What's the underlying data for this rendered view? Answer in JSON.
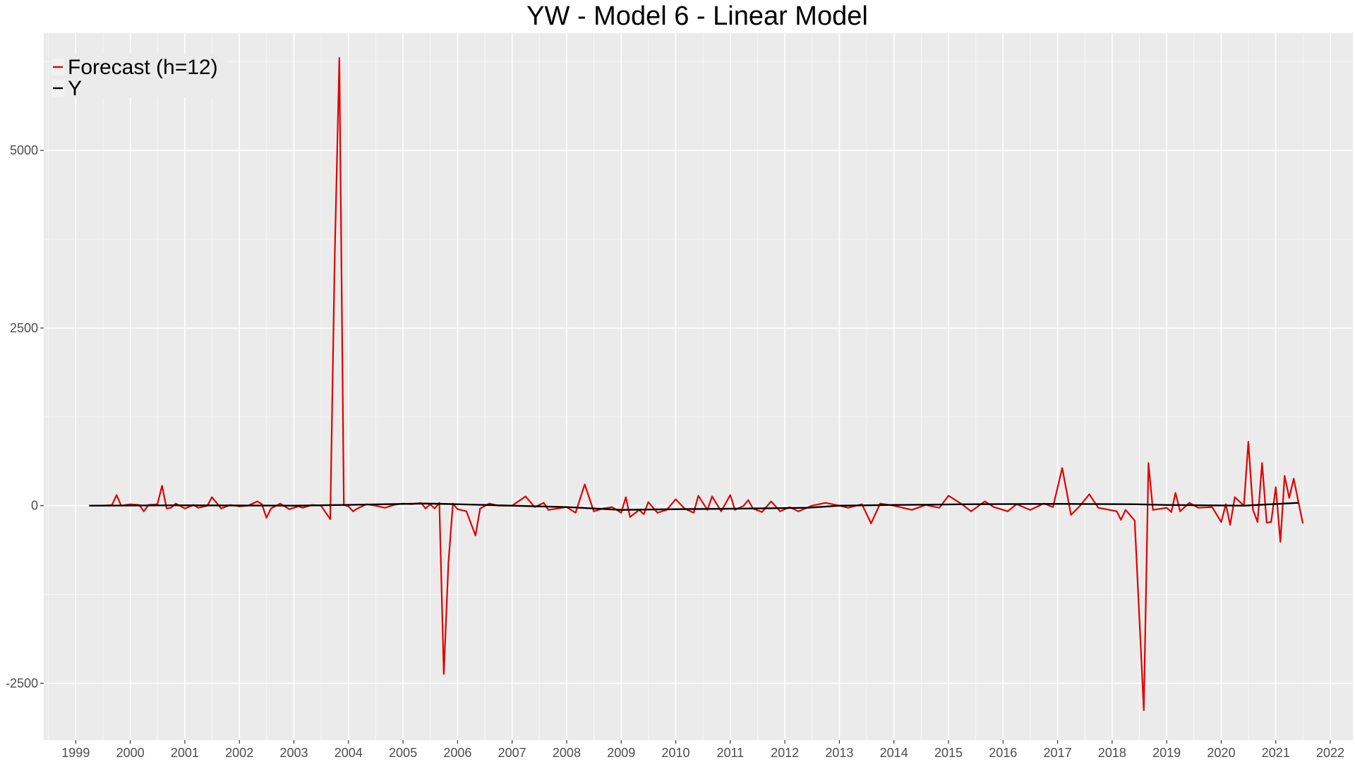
{
  "chart_data": {
    "type": "line",
    "title": "YW - Model 6 - Linear Model",
    "xlabel": "",
    "ylabel": "",
    "x_range": [
      "1998-06-01",
      "2022-06-01"
    ],
    "ylim": [
      -3300,
      6650
    ],
    "x_ticks": [
      "1999",
      "2000",
      "2001",
      "2002",
      "2003",
      "2004",
      "2005",
      "2006",
      "2007",
      "2008",
      "2009",
      "2010",
      "2011",
      "2012",
      "2013",
      "2014",
      "2015",
      "2016",
      "2017",
      "2018",
      "2019",
      "2020",
      "2021",
      "2022"
    ],
    "y_ticks": [
      -2500,
      0,
      2500,
      5000
    ],
    "grid": true,
    "legend": "top-left",
    "series": [
      {
        "name": "Forecast (h=12)",
        "color": "#e00000",
        "points": [
          [
            "1999-07-01",
            0
          ],
          [
            "1999-09-01",
            10
          ],
          [
            "1999-10-01",
            150
          ],
          [
            "1999-11-01",
            0
          ],
          [
            "2000-01-01",
            20
          ],
          [
            "2000-03-01",
            10
          ],
          [
            "2000-04-01",
            -80
          ],
          [
            "2000-05-01",
            10
          ],
          [
            "2000-07-01",
            20
          ],
          [
            "2000-08-01",
            280
          ],
          [
            "2000-09-01",
            -40
          ],
          [
            "2000-10-01",
            -30
          ],
          [
            "2000-11-01",
            30
          ],
          [
            "2001-01-01",
            -40
          ],
          [
            "2001-03-01",
            10
          ],
          [
            "2001-04-01",
            -30
          ],
          [
            "2001-06-01",
            0
          ],
          [
            "2001-07-01",
            120
          ],
          [
            "2001-09-01",
            -40
          ],
          [
            "2001-11-01",
            10
          ],
          [
            "2002-01-01",
            -10
          ],
          [
            "2002-03-01",
            0
          ],
          [
            "2002-05-01",
            60
          ],
          [
            "2002-06-01",
            20
          ],
          [
            "2002-07-01",
            -170
          ],
          [
            "2002-08-01",
            -40
          ],
          [
            "2002-10-01",
            30
          ],
          [
            "2002-12-01",
            -50
          ],
          [
            "2003-02-01",
            -10
          ],
          [
            "2003-03-01",
            -30
          ],
          [
            "2003-05-01",
            10
          ],
          [
            "2003-07-01",
            0
          ],
          [
            "2003-09-01",
            -190
          ],
          [
            "2003-10-01",
            3500
          ],
          [
            "2003-11-01",
            6300
          ],
          [
            "2003-12-01",
            10
          ],
          [
            "2004-01-01",
            -10
          ],
          [
            "2004-02-01",
            -80
          ],
          [
            "2004-03-01",
            -40
          ],
          [
            "2004-05-01",
            20
          ],
          [
            "2004-07-01",
            0
          ],
          [
            "2004-09-01",
            -30
          ],
          [
            "2004-11-01",
            10
          ],
          [
            "2005-01-01",
            30
          ],
          [
            "2005-03-01",
            20
          ],
          [
            "2005-05-01",
            40
          ],
          [
            "2005-06-01",
            -40
          ],
          [
            "2005-07-01",
            20
          ],
          [
            "2005-08-01",
            -40
          ],
          [
            "2005-09-01",
            40
          ],
          [
            "2005-10-01",
            -2370
          ],
          [
            "2005-11-01",
            -800
          ],
          [
            "2005-12-01",
            30
          ],
          [
            "2006-01-01",
            -50
          ],
          [
            "2006-03-01",
            -80
          ],
          [
            "2006-05-01",
            -420
          ],
          [
            "2006-06-01",
            -40
          ],
          [
            "2006-08-01",
            30
          ],
          [
            "2006-10-01",
            0
          ],
          [
            "2007-01-01",
            0
          ],
          [
            "2007-04-01",
            130
          ],
          [
            "2007-06-01",
            -20
          ],
          [
            "2007-08-01",
            40
          ],
          [
            "2007-09-01",
            -60
          ],
          [
            "2008-01-01",
            -20
          ],
          [
            "2008-03-01",
            -100
          ],
          [
            "2008-05-01",
            300
          ],
          [
            "2008-07-01",
            -80
          ],
          [
            "2008-09-01",
            -40
          ],
          [
            "2008-11-01",
            -20
          ],
          [
            "2009-01-01",
            -100
          ],
          [
            "2009-02-01",
            120
          ],
          [
            "2009-03-01",
            -160
          ],
          [
            "2009-05-01",
            -60
          ],
          [
            "2009-06-01",
            -120
          ],
          [
            "2009-07-01",
            50
          ],
          [
            "2009-09-01",
            -100
          ],
          [
            "2009-11-01",
            -60
          ],
          [
            "2010-01-01",
            90
          ],
          [
            "2010-03-01",
            -40
          ],
          [
            "2010-05-01",
            -100
          ],
          [
            "2010-06-01",
            140
          ],
          [
            "2010-08-01",
            -60
          ],
          [
            "2010-09-01",
            130
          ],
          [
            "2010-11-01",
            -80
          ],
          [
            "2011-01-01",
            150
          ],
          [
            "2011-02-01",
            -60
          ],
          [
            "2011-04-01",
            0
          ],
          [
            "2011-05-01",
            80
          ],
          [
            "2011-06-01",
            -40
          ],
          [
            "2011-08-01",
            -90
          ],
          [
            "2011-10-01",
            60
          ],
          [
            "2011-12-01",
            -80
          ],
          [
            "2012-02-01",
            -20
          ],
          [
            "2012-04-01",
            -80
          ],
          [
            "2012-07-01",
            0
          ],
          [
            "2012-10-01",
            40
          ],
          [
            "2013-01-01",
            0
          ],
          [
            "2013-03-01",
            -30
          ],
          [
            "2013-06-01",
            20
          ],
          [
            "2013-08-01",
            -250
          ],
          [
            "2013-10-01",
            30
          ],
          [
            "2014-01-01",
            0
          ],
          [
            "2014-05-01",
            -60
          ],
          [
            "2014-08-01",
            10
          ],
          [
            "2014-11-01",
            -30
          ],
          [
            "2015-01-01",
            140
          ],
          [
            "2015-04-01",
            20
          ],
          [
            "2015-06-01",
            -80
          ],
          [
            "2015-09-01",
            60
          ],
          [
            "2015-11-01",
            -20
          ],
          [
            "2016-02-01",
            -80
          ],
          [
            "2016-04-01",
            20
          ],
          [
            "2016-07-01",
            -60
          ],
          [
            "2016-10-01",
            30
          ],
          [
            "2016-12-01",
            -20
          ],
          [
            "2017-02-01",
            530
          ],
          [
            "2017-04-01",
            -130
          ],
          [
            "2017-06-01",
            0
          ],
          [
            "2017-08-01",
            160
          ],
          [
            "2017-10-01",
            -30
          ],
          [
            "2018-02-01",
            -80
          ],
          [
            "2018-03-01",
            -200
          ],
          [
            "2018-04-01",
            -60
          ],
          [
            "2018-06-01",
            -210
          ],
          [
            "2018-08-01",
            -2880
          ],
          [
            "2018-09-01",
            600
          ],
          [
            "2018-10-01",
            -60
          ],
          [
            "2019-01-01",
            -30
          ],
          [
            "2019-02-01",
            -90
          ],
          [
            "2019-03-01",
            180
          ],
          [
            "2019-04-01",
            -80
          ],
          [
            "2019-06-01",
            40
          ],
          [
            "2019-08-01",
            -30
          ],
          [
            "2019-11-01",
            -20
          ],
          [
            "2020-01-01",
            -230
          ],
          [
            "2020-02-01",
            20
          ],
          [
            "2020-03-01",
            -270
          ],
          [
            "2020-04-01",
            120
          ],
          [
            "2020-06-01",
            0
          ],
          [
            "2020-07-01",
            900
          ],
          [
            "2020-08-01",
            -60
          ],
          [
            "2020-09-01",
            -230
          ],
          [
            "2020-10-01",
            600
          ],
          [
            "2020-11-01",
            -240
          ],
          [
            "2020-12-01",
            -230
          ],
          [
            "2021-01-01",
            260
          ],
          [
            "2021-02-01",
            -510
          ],
          [
            "2021-03-01",
            420
          ],
          [
            "2021-04-01",
            110
          ],
          [
            "2021-05-01",
            380
          ],
          [
            "2021-07-01",
            -250
          ]
        ]
      },
      {
        "name": "Y",
        "color": "#000000",
        "points": [
          [
            "1999-04-01",
            0
          ],
          [
            "2001-01-01",
            5
          ],
          [
            "2003-01-01",
            0
          ],
          [
            "2003-12-01",
            10
          ],
          [
            "2005-06-01",
            30
          ],
          [
            "2006-01-01",
            20
          ],
          [
            "2007-01-01",
            0
          ],
          [
            "2008-01-01",
            -20
          ],
          [
            "2008-07-01",
            -40
          ],
          [
            "2009-01-01",
            -60
          ],
          [
            "2010-01-01",
            -50
          ],
          [
            "2011-06-01",
            -40
          ],
          [
            "2012-06-01",
            -30
          ],
          [
            "2013-01-01",
            0
          ],
          [
            "2014-01-01",
            10
          ],
          [
            "2015-06-01",
            20
          ],
          [
            "2017-01-01",
            25
          ],
          [
            "2018-06-01",
            20
          ],
          [
            "2019-01-01",
            10
          ],
          [
            "2020-06-01",
            0
          ],
          [
            "2021-06-01",
            40
          ]
        ]
      }
    ]
  }
}
